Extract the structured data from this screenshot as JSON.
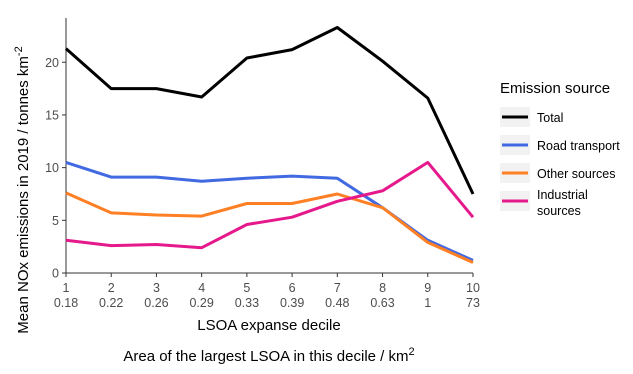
{
  "chart_data": {
    "type": "line",
    "x": [
      1,
      2,
      3,
      4,
      5,
      6,
      7,
      8,
      9,
      10
    ],
    "x_tick_labels": [
      "1",
      "2",
      "3",
      "4",
      "5",
      "6",
      "7",
      "8",
      "9",
      "10"
    ],
    "x_tick_labels_secondary": [
      "0.18",
      "0.22",
      "0.26",
      "0.29",
      "0.33",
      "0.39",
      "0.48",
      "0.63",
      "1",
      "73"
    ],
    "xlabel": "LSOA expanse decile",
    "xlabel_secondary": "Area of the largest LSOA in this decile / km",
    "xlabel_secondary_superscript": "2",
    "ylabel": "Mean  NOx emissions in  2019 / tonnes  km",
    "ylabel_superscript": "-2",
    "ylim": [
      0,
      24.2
    ],
    "y_ticks": [
      0,
      5,
      10,
      15,
      20
    ],
    "y_tick_labels": [
      "0",
      "5",
      "10",
      "15",
      "20"
    ],
    "grid": false,
    "legend": {
      "title": "Emission source",
      "placement": "right"
    },
    "series": [
      {
        "name": "Total",
        "color": "#000000",
        "values": [
          21.3,
          17.5,
          17.5,
          16.7,
          20.4,
          21.2,
          23.3,
          20.1,
          16.6,
          7.5
        ]
      },
      {
        "name": "Road transport",
        "color": "#4169E1",
        "values": [
          10.5,
          9.1,
          9.1,
          8.7,
          9.0,
          9.2,
          9.0,
          6.2,
          3.1,
          1.2
        ]
      },
      {
        "name": "Other sources",
        "color": "#FF7F24",
        "values": [
          7.6,
          5.7,
          5.5,
          5.4,
          6.6,
          6.6,
          7.5,
          6.2,
          2.9,
          1.0
        ]
      },
      {
        "name": "Industrial sources",
        "name_lines": [
          "Industrial",
          "sources"
        ],
        "color": "#E6198C",
        "values": [
          3.1,
          2.6,
          2.7,
          2.4,
          4.6,
          5.3,
          6.8,
          7.8,
          10.5,
          5.3
        ]
      }
    ]
  }
}
